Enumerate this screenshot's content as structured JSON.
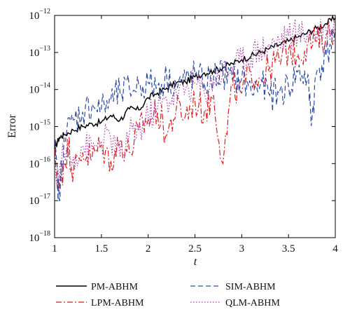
{
  "chart_data": {
    "type": "line",
    "xlabel": "t",
    "ylabel": "Error",
    "xlim": [
      1,
      4
    ],
    "ylim": [
      1e-18,
      1e-12
    ],
    "yscale": "log",
    "grid": false,
    "legend_position": "bottom",
    "x_ticks": [
      "1",
      "1.5",
      "2",
      "2.5",
      "3",
      "3.5",
      "4"
    ],
    "y_ticks": [
      {
        "base": "10",
        "exp": "−12"
      },
      {
        "base": "10",
        "exp": "−13"
      },
      {
        "base": "10",
        "exp": "−14"
      },
      {
        "base": "10",
        "exp": "−15"
      },
      {
        "base": "10",
        "exp": "−16"
      },
      {
        "base": "10",
        "exp": "−17"
      },
      {
        "base": "10",
        "exp": "−18"
      }
    ],
    "series": [
      {
        "name": "PM-ABHM",
        "color": "#000000",
        "style": "solid",
        "x": [
          1.0,
          1.05,
          1.1,
          1.2,
          1.3,
          1.4,
          1.5,
          1.6,
          1.7,
          1.8,
          1.9,
          2.0,
          2.1,
          2.2,
          2.3,
          2.4,
          2.5,
          2.6,
          2.7,
          2.8,
          2.9,
          3.0,
          3.1,
          3.2,
          3.3,
          3.4,
          3.5,
          3.6,
          3.7,
          3.8,
          3.9,
          4.0
        ],
        "y": [
          2.5e-16,
          5e-16,
          6e-16,
          8e-16,
          1e-15,
          1.2e-15,
          1.3e-15,
          2e-15,
          1.5e-15,
          3e-15,
          2.8e-15,
          6e-15,
          8e-15,
          1.1e-14,
          1.5e-14,
          1.6e-14,
          2.2e-14,
          2.8e-14,
          3.2e-14,
          4e-14,
          5e-14,
          6.5e-14,
          8e-14,
          1e-13,
          1.3e-13,
          1.6e-13,
          2e-13,
          2.6e-13,
          3.4e-13,
          4.5e-13,
          6e-13,
          8.5e-13
        ]
      },
      {
        "name": "LPM-ABHM",
        "color": "#e41a1c",
        "style": "dashdot",
        "x": [
          1.0,
          1.05,
          1.1,
          1.15,
          1.2,
          1.3,
          1.4,
          1.5,
          1.6,
          1.7,
          1.8,
          1.9,
          2.0,
          2.1,
          2.2,
          2.3,
          2.4,
          2.5,
          2.6,
          2.7,
          2.8,
          2.9,
          3.0,
          3.1,
          3.2,
          3.3,
          3.4,
          3.5,
          3.6,
          3.7,
          3.8,
          3.9,
          4.0
        ],
        "y": [
          1.5e-16,
          2e-17,
          1e-16,
          3e-16,
          6e-17,
          2e-16,
          1.5e-16,
          3e-16,
          1.2e-16,
          4e-16,
          2e-16,
          8e-16,
          1.5e-15,
          2.5e-15,
          6e-16,
          3e-15,
          2e-15,
          5e-15,
          2.5e-15,
          7e-15,
          1e-16,
          1.2e-14,
          8e-15,
          3e-14,
          2e-14,
          4e-14,
          6e-14,
          1.2e-13,
          9e-14,
          1.6e-13,
          2e-13,
          3e-13,
          5e-13
        ]
      },
      {
        "name": "SIM-ABHM",
        "color": "#2b4aa8",
        "style": "dashed",
        "x": [
          1.0,
          1.05,
          1.1,
          1.2,
          1.3,
          1.4,
          1.5,
          1.6,
          1.7,
          1.8,
          1.9,
          2.0,
          2.1,
          2.2,
          2.3,
          2.4,
          2.5,
          2.6,
          2.7,
          2.8,
          2.9,
          3.0,
          3.1,
          3.2,
          3.3,
          3.4,
          3.5,
          3.6,
          3.7,
          3.75,
          3.8,
          3.9,
          4.0
        ],
        "y": [
          3e-16,
          1e-17,
          5e-16,
          1.5e-15,
          2.5e-15,
          4e-15,
          3e-15,
          5e-15,
          8e-15,
          1e-14,
          1.3e-14,
          1.5e-14,
          1.2e-14,
          2e-14,
          1.4e-14,
          1.8e-14,
          2.5e-14,
          1.5e-14,
          2.2e-14,
          2.8e-14,
          1.8e-14,
          2e-14,
          9e-15,
          1.4e-14,
          7e-15,
          8e-15,
          1.2e-14,
          3e-14,
          2e-14,
          1.5e-15,
          3e-14,
          8e-14,
          4e-13
        ]
      },
      {
        "name": "QLM-ABHM",
        "color": "#b23aa6",
        "style": "dotted",
        "x": [
          1.0,
          1.05,
          1.1,
          1.2,
          1.3,
          1.4,
          1.5,
          1.6,
          1.7,
          1.8,
          1.9,
          2.0,
          2.1,
          2.2,
          2.3,
          2.4,
          2.5,
          2.6,
          2.7,
          2.8,
          2.9,
          3.0,
          3.1,
          3.2,
          3.3,
          3.4,
          3.5,
          3.6,
          3.7,
          3.8,
          3.9,
          4.0
        ],
        "y": [
          8e-17,
          5e-17,
          2e-16,
          1.5e-16,
          3e-16,
          2.5e-16,
          4e-16,
          5e-16,
          1.5e-16,
          6e-16,
          8e-16,
          2e-15,
          3e-15,
          5e-15,
          8e-15,
          1e-14,
          1.5e-14,
          8e-15,
          2e-14,
          3e-14,
          4e-14,
          6e-14,
          9e-14,
          1.3e-13,
          1.5e-13,
          2.2e-13,
          2.8e-13,
          3e-13,
          3.5e-13,
          4e-13,
          4.5e-13,
          5.5e-13
        ]
      }
    ]
  }
}
